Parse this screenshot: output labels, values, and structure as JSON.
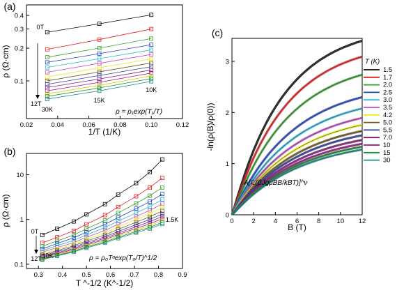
{
  "panels": {
    "a": "(a)",
    "b": "(b)",
    "c": "(c)"
  },
  "series_colors": [
    "#000000",
    "#e31a1c",
    "#33a02c",
    "#1f3fbf",
    "#2ab7d6",
    "#c04fc4",
    "#e8e81a",
    "#6b5a1e",
    "#2a3a9a",
    "#7a1a7a",
    "#a0108a",
    "#d0d000",
    "#1a8a2a",
    "#1a8a8a"
  ],
  "chart_data": [
    {
      "id": "a",
      "type": "line",
      "xlabel": "1/T (1/K)",
      "ylabel": "ρ (Ω·cm)",
      "xlim": [
        0.02,
        0.12
      ],
      "ylim": [
        0.045,
        0.5
      ],
      "yscale": "log",
      "xticks": [
        "0.02",
        "0.04",
        "0.06",
        "0.08",
        "0.10",
        "0.12"
      ],
      "yticks": [
        "0.1",
        "0.2",
        "0.3",
        "0.4"
      ],
      "x": [
        0.0333,
        0.0667,
        0.1
      ],
      "series": [
        {
          "values": [
            0.28,
            0.335,
            0.405
          ]
        },
        {
          "values": [
            0.195,
            0.24,
            0.3
          ]
        },
        {
          "values": [
            0.165,
            0.2,
            0.245
          ]
        },
        {
          "values": [
            0.148,
            0.178,
            0.215
          ]
        },
        {
          "values": [
            0.133,
            0.16,
            0.193
          ]
        },
        {
          "values": [
            0.12,
            0.145,
            0.175
          ]
        },
        {
          "values": [
            0.109,
            0.132,
            0.159
          ]
        },
        {
          "values": [
            0.1,
            0.121,
            0.146
          ]
        },
        {
          "values": [
            0.093,
            0.112,
            0.135
          ]
        },
        {
          "values": [
            0.087,
            0.104,
            0.126
          ]
        },
        {
          "values": [
            0.081,
            0.097,
            0.118
          ]
        },
        {
          "values": [
            0.076,
            0.091,
            0.111
          ]
        },
        {
          "values": [
            0.072,
            0.086,
            0.105
          ]
        },
        {
          "values": [
            0.068,
            0.081,
            0.099
          ]
        }
      ],
      "annotations": {
        "top": "0T",
        "bottom": "12T",
        "t30": "30K",
        "t15": "15K",
        "t10": "10K",
        "equation": "ρ = ρ₁exp(T₁/T)"
      }
    },
    {
      "id": "b",
      "type": "line",
      "xlabel": "T ^-1/2 (K^-1/2)",
      "ylabel": "ρ (Ω·cm)",
      "xlim": [
        0.25,
        0.9
      ],
      "ylim": [
        0.08,
        30
      ],
      "yscale": "log",
      "xticks": [
        "0.3",
        "0.4",
        "0.5",
        "0.6",
        "0.7",
        "0.8",
        "0.9"
      ],
      "yticks": [
        "0.1",
        "1",
        "10"
      ],
      "x": [
        0.316,
        0.378,
        0.447,
        0.5,
        0.577,
        0.632,
        0.707,
        0.764,
        0.816
      ],
      "series": [
        {
          "values": [
            0.45,
            0.62,
            0.9,
            1.3,
            2.2,
            3.6,
            6.5,
            11.5,
            22
          ]
        },
        {
          "values": [
            0.3,
            0.4,
            0.56,
            0.78,
            1.25,
            1.9,
            3.3,
            5.2,
            8.5
          ]
        },
        {
          "values": [
            0.25,
            0.33,
            0.45,
            0.62,
            0.95,
            1.4,
            2.3,
            3.4,
            5.2
          ]
        },
        {
          "values": [
            0.22,
            0.29,
            0.39,
            0.52,
            0.78,
            1.1,
            1.75,
            2.5,
            3.7
          ]
        },
        {
          "values": [
            0.2,
            0.26,
            0.34,
            0.45,
            0.66,
            0.92,
            1.4,
            1.95,
            2.8
          ]
        },
        {
          "values": [
            0.185,
            0.235,
            0.305,
            0.4,
            0.57,
            0.78,
            1.17,
            1.6,
            2.25
          ]
        },
        {
          "values": [
            0.172,
            0.217,
            0.28,
            0.36,
            0.5,
            0.68,
            1.0,
            1.35,
            1.85
          ]
        },
        {
          "values": [
            0.162,
            0.202,
            0.258,
            0.33,
            0.45,
            0.6,
            0.87,
            1.15,
            1.55
          ]
        },
        {
          "values": [
            0.153,
            0.19,
            0.24,
            0.305,
            0.41,
            0.54,
            0.77,
            1.0,
            1.33
          ]
        },
        {
          "values": [
            0.146,
            0.18,
            0.226,
            0.285,
            0.38,
            0.495,
            0.69,
            0.89,
            1.17
          ]
        },
        {
          "values": [
            0.14,
            0.172,
            0.214,
            0.268,
            0.355,
            0.46,
            0.63,
            0.8,
            1.04
          ]
        },
        {
          "values": [
            0.135,
            0.165,
            0.204,
            0.254,
            0.333,
            0.43,
            0.58,
            0.73,
            0.94
          ]
        },
        {
          "values": [
            0.13,
            0.158,
            0.195,
            0.242,
            0.315,
            0.4,
            0.54,
            0.67,
            0.86
          ]
        },
        {
          "values": [
            0.126,
            0.153,
            0.188,
            0.232,
            0.3,
            0.38,
            0.505,
            0.625,
            0.79
          ]
        }
      ],
      "annotations": {
        "top": "0T",
        "bottom": "12T",
        "t10": "10K",
        "t15": "1.5K",
        "equation": "ρ = ρ₀Tᵅexp(T₀/T)^1/2"
      }
    },
    {
      "id": "c",
      "type": "line",
      "xlabel": "B (T)",
      "ylabel": "-ln(ρ(B)/ρ(0))",
      "xlim": [
        0,
        12
      ],
      "ylim": [
        0,
        3.45
      ],
      "xticks": [
        "0",
        "2",
        "4",
        "6",
        "8",
        "10",
        "12"
      ],
      "yticks": [
        "0",
        "1",
        "2",
        "3"
      ],
      "legend_title": "T (K)",
      "legend_position": "right",
      "legend": [
        "1.5",
        "1.7",
        "2.0",
        "2.5",
        "3.0",
        "3.5",
        "4.2",
        "5.0",
        "5.5",
        "7.0",
        "10",
        "15",
        "30"
      ],
      "saturation": [
        3.7,
        3.4,
        3.05,
        2.6,
        2.37,
        2.17,
        2.02,
        1.89,
        1.8,
        1.7,
        1.62,
        1.56,
        1.5
      ],
      "rate": [
        0.21,
        0.2,
        0.19,
        0.18,
        0.175,
        0.172,
        0.17,
        0.168,
        0.166,
        0.164,
        0.162,
        0.16,
        0.158
      ],
      "annotation": "A[ℒ(βJgμBB/kBT)]^ν"
    }
  ]
}
